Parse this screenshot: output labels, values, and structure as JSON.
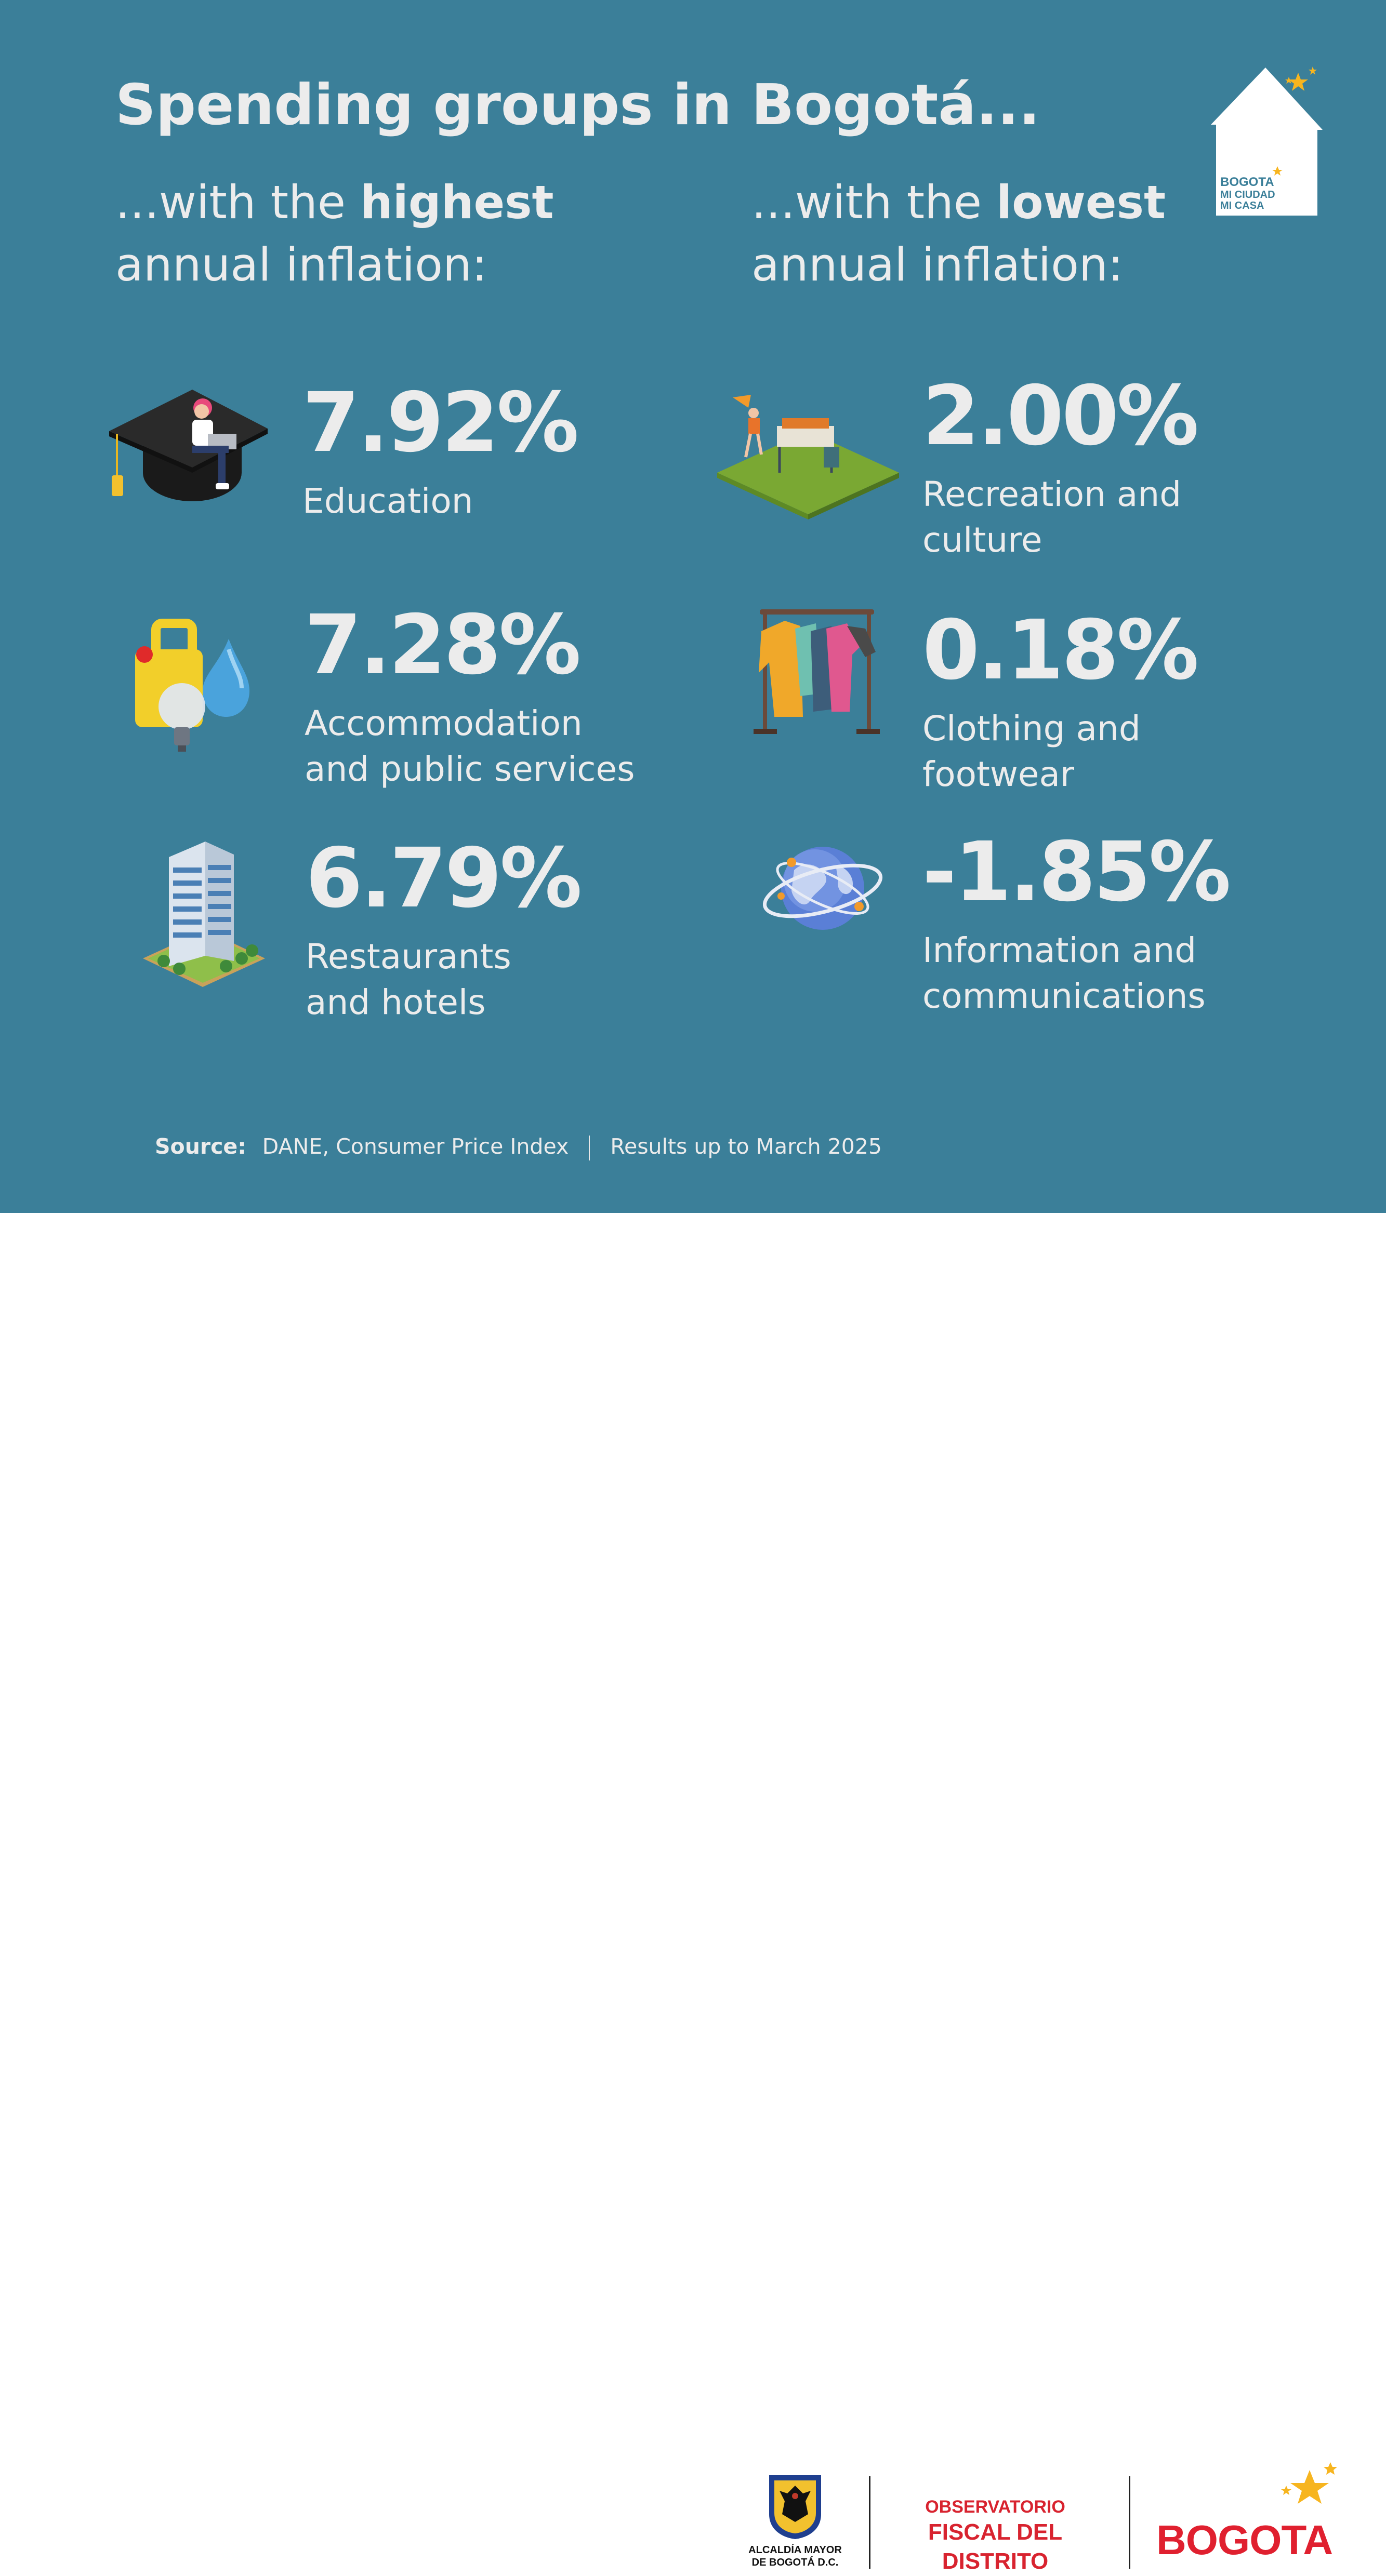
{
  "title": "Spending groups in Bogotá...",
  "highest": {
    "intro_prefix": "...with the ",
    "intro_emphasis": "highest",
    "intro_suffix": "annual inflation:",
    "items": [
      {
        "value": "7.92%",
        "label_lines": [
          "Education"
        ],
        "icon": "graduation-cap-icon"
      },
      {
        "value": "7.28%",
        "label_lines": [
          "Accommodation",
          "and public services"
        ],
        "icon": "utilities-icon"
      },
      {
        "value": "6.79%",
        "label_lines": [
          "Restaurants",
          "and hotels"
        ],
        "icon": "hotel-icon"
      }
    ]
  },
  "lowest": {
    "intro_prefix": "...with the ",
    "intro_emphasis": "lowest",
    "intro_suffix": "annual inflation:",
    "items": [
      {
        "value": "2.00%",
        "label_lines": [
          "Recreation and",
          "culture"
        ],
        "icon": "park-recreation-icon"
      },
      {
        "value": "0.18%",
        "label_lines": [
          "Clothing and",
          "footwear"
        ],
        "icon": "clothing-rack-icon"
      },
      {
        "value": "-1.85%",
        "label_lines": [
          "Information and",
          "communications"
        ],
        "icon": "globe-network-icon"
      }
    ]
  },
  "source": {
    "label": "Source:",
    "text": "DANE, Consumer Price Index",
    "period": "Results up to March 2025"
  },
  "house_logo": {
    "line1": "BOGOTA",
    "line2": "MI CIUDAD",
    "line3": "MI CASA"
  },
  "footer": {
    "alcaldia_line1": "ALCALDÍA MAYOR",
    "alcaldia_line2": "DE BOGOTÁ D.C.",
    "observatorio_line1": "OBSERVATORIO",
    "observatorio_line2": "FISCAL DEL DISTRITO",
    "bogota_brand": "BOGOTA"
  },
  "colors": {
    "background": "#3b7f99",
    "text": "#ececec",
    "brand_red": "#e0202f",
    "star_yellow": "#f7b51f"
  }
}
